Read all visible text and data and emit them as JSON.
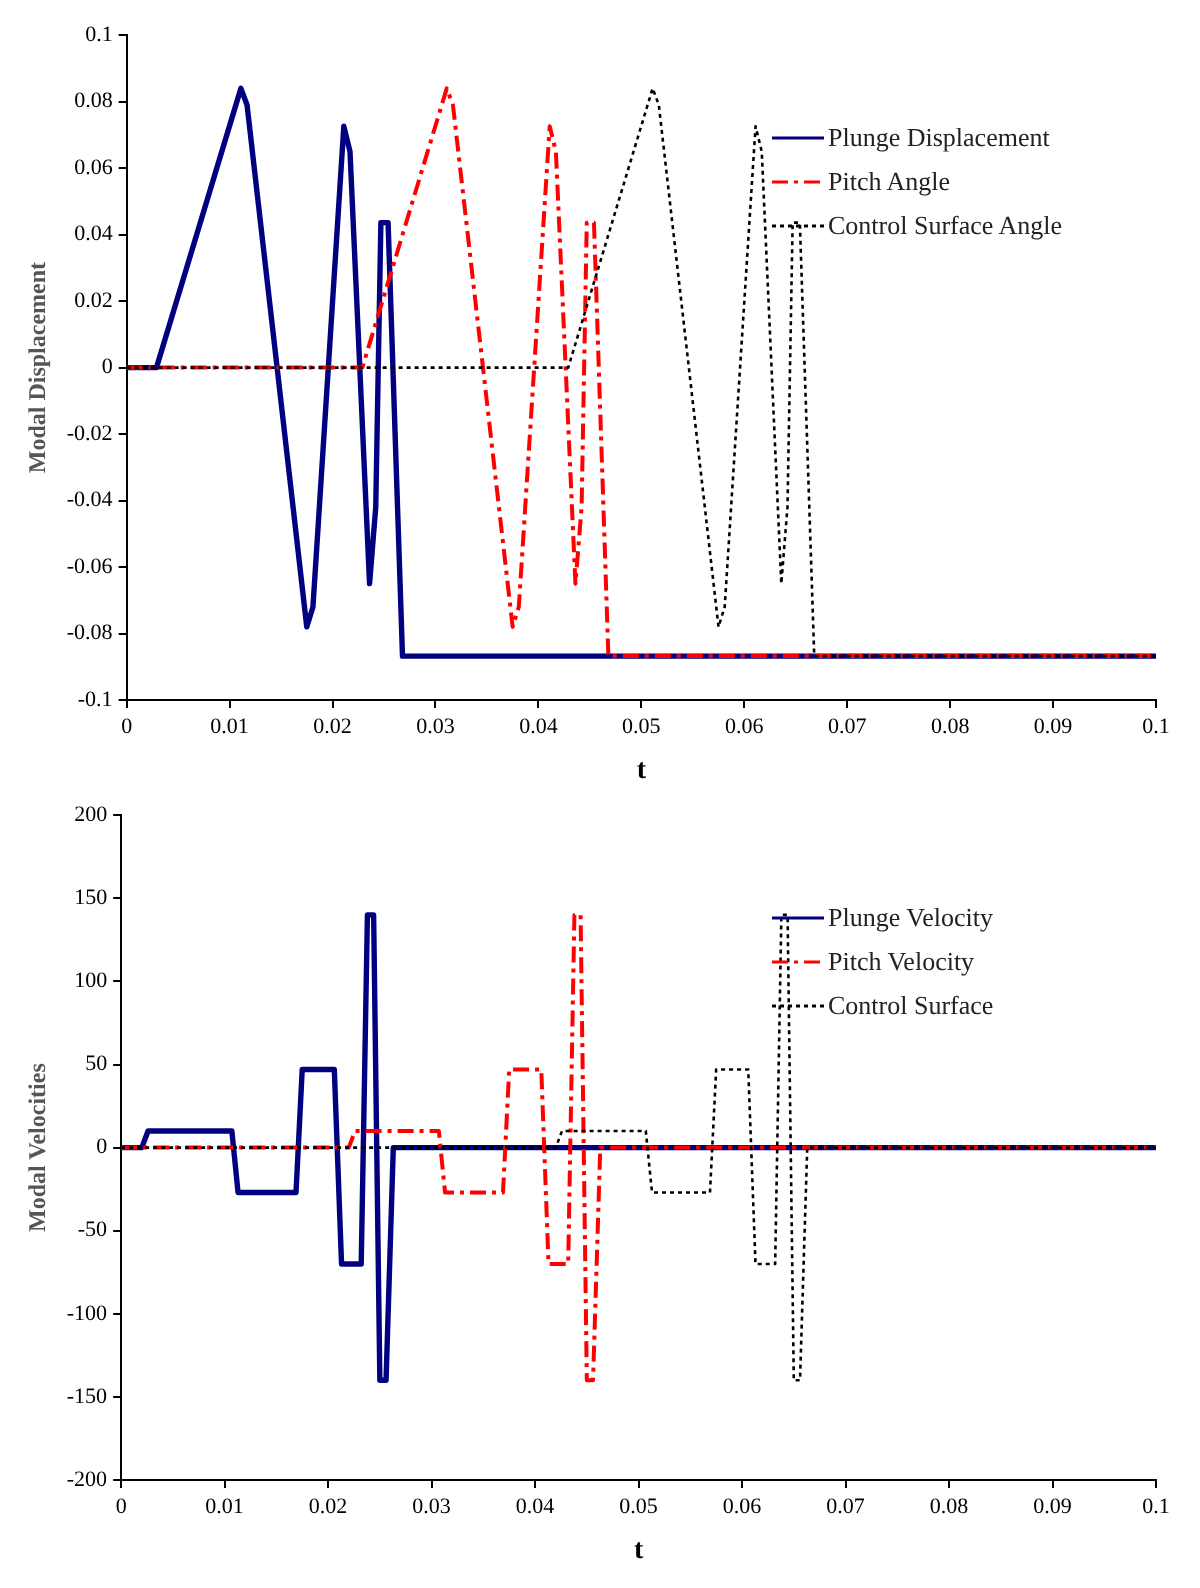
{
  "chart_data": [
    {
      "type": "line",
      "xlabel": "t",
      "ylabel": "Modal Displacement",
      "xlim": [
        0,
        0.1
      ],
      "xticks": [
        0,
        0.01,
        0.02,
        0.03,
        0.04,
        0.05,
        0.06,
        0.07,
        0.08,
        0.09,
        0.1
      ],
      "ylim": [
        -0.1,
        0.1
      ],
      "yticks": [
        -0.1,
        -0.08,
        -0.06,
        -0.04,
        -0.02,
        0,
        0.02,
        0.04,
        0.06,
        0.08,
        0.1
      ],
      "grid": false,
      "legend": "top right",
      "series": [
        {
          "name": "Plunge Displacement",
          "color": "#000080",
          "line_style": "solid",
          "x": [
            0,
            0.0029,
            0.0111,
            0.0117,
            0.0175,
            0.0181,
            0.0211,
            0.0217,
            0.0236,
            0.0242,
            0.0247,
            0.0254,
            0.0268,
            0.1
          ],
          "values": [
            0,
            0,
            0.084,
            0.079,
            -0.078,
            -0.072,
            0.0726,
            0.065,
            -0.065,
            -0.042,
            0.0436,
            0.0436,
            -0.0868,
            -0.0868
          ]
        },
        {
          "name": "Pitch Angle",
          "color": "#ff0000",
          "line_style": "dashed",
          "x": [
            0,
            0.0229,
            0.0311,
            0.0317,
            0.0375,
            0.0381,
            0.0411,
            0.0417,
            0.0436,
            0.0442,
            0.0447,
            0.0454,
            0.0468,
            0.1
          ],
          "values": [
            0,
            0,
            0.084,
            0.079,
            -0.078,
            -0.072,
            0.0726,
            0.065,
            -0.065,
            -0.042,
            0.0436,
            0.0436,
            -0.0868,
            -0.0868
          ]
        },
        {
          "name": "Control Surface Angle",
          "color": "#000000",
          "line_style": "dotted",
          "x": [
            0,
            0.0429,
            0.0511,
            0.0517,
            0.0575,
            0.0581,
            0.0611,
            0.0617,
            0.0636,
            0.0642,
            0.0647,
            0.0654,
            0.0668,
            0.1
          ],
          "values": [
            0,
            0,
            0.084,
            0.079,
            -0.078,
            -0.072,
            0.0726,
            0.065,
            -0.065,
            -0.042,
            0.0436,
            0.0436,
            -0.0868,
            -0.0868
          ]
        }
      ]
    },
    {
      "type": "line",
      "xlabel": "t",
      "ylabel": "Modal Velocities",
      "xlim": [
        0,
        0.1
      ],
      "xticks": [
        0,
        0.01,
        0.02,
        0.03,
        0.04,
        0.05,
        0.06,
        0.07,
        0.08,
        0.09,
        0.1
      ],
      "ylim": [
        -200,
        200
      ],
      "yticks": [
        -200,
        -150,
        -100,
        -50,
        0,
        50,
        100,
        150,
        200
      ],
      "grid": false,
      "legend": "top right",
      "series": [
        {
          "name": "Plunge Velocity",
          "color": "#000080",
          "line_style": "solid",
          "x": [
            0,
            0.002,
            0.0026,
            0.0107,
            0.0113,
            0.0169,
            0.0175,
            0.0206,
            0.0213,
            0.0232,
            0.0238,
            0.0244,
            0.025,
            0.0256,
            0.0263,
            0.1
          ],
          "values": [
            0,
            0,
            10,
            10,
            -27,
            -27,
            47,
            47,
            -70,
            -70,
            140,
            140,
            -140,
            -140,
            0,
            0
          ]
        },
        {
          "name": "Pitch Velocity",
          "color": "#ff0000",
          "line_style": "dashed",
          "x": [
            0,
            0.022,
            0.0226,
            0.0307,
            0.0313,
            0.0369,
            0.0375,
            0.0406,
            0.0413,
            0.0432,
            0.0438,
            0.0444,
            0.045,
            0.0456,
            0.0463,
            0.1
          ],
          "values": [
            0,
            0,
            10,
            10,
            -27,
            -27,
            47,
            47,
            -70,
            -70,
            140,
            140,
            -140,
            -140,
            0,
            0
          ]
        },
        {
          "name": "Control Surface",
          "color": "#000000",
          "line_style": "dotted",
          "x": [
            0,
            0.042,
            0.0426,
            0.0507,
            0.0513,
            0.0569,
            0.0575,
            0.0606,
            0.0613,
            0.0632,
            0.0638,
            0.0644,
            0.065,
            0.0656,
            0.0663,
            0.1
          ],
          "values": [
            0,
            0,
            10,
            10,
            -27,
            -27,
            47,
            47,
            -70,
            -70,
            140,
            140,
            -140,
            -140,
            0,
            0
          ]
        }
      ]
    }
  ]
}
